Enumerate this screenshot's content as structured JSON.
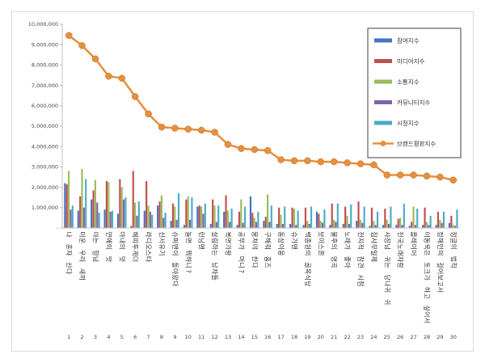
{
  "chart_data": {
    "type": "bar",
    "title": "",
    "xlabel": "",
    "ylabel": "",
    "ylim": [
      0,
      10000000
    ],
    "yticks": [
      "-",
      "1,000,000",
      "2,000,000",
      "3,000,000",
      "4,000,000",
      "5,000,000",
      "6,000,000",
      "7,000,000",
      "8,000,000",
      "9,000,000",
      "10,000,000"
    ],
    "grid": false,
    "legend_position": "top-right",
    "ranks": [
      "1",
      "2",
      "3",
      "4",
      "5",
      "6",
      "7",
      "8",
      "9",
      "10",
      "11",
      "12",
      "13",
      "14",
      "15",
      "16",
      "17",
      "18",
      "19",
      "20",
      "21",
      "22",
      "23",
      "24",
      "25",
      "26",
      "27",
      "28",
      "29",
      "30"
    ],
    "categories": [
      "나 혼자 산다",
      "미운 우리 새끼",
      "아는 형님",
      "연애의 맛",
      "아내의 맛",
      "해피투게더",
      "라디오스타",
      "신서유기",
      "슈퍼맨이 돌아왔다",
      "놀면 뭐하니?",
      "런닝맨",
      "살림하는 남자들",
      "복면가왕",
      "공부가 머니?",
      "뭉쳐야 찬다",
      "구해줘 홈즈",
      "동상이몽",
      "슈가맨",
      "백종원의 골목식당",
      "보이스퀸",
      "불후의 명곡",
      "노래가 좋아",
      "전지적 참견 시점",
      "집사부일체",
      "사장님 귀는 당나귀 귀",
      "전국노래자랑",
      "플레이어",
      "이동욱은 토크가 하고 싶어서",
      "정해인의 걸어보고서",
      "정글의 법칙"
    ],
    "series": [
      {
        "name": "참여지수",
        "color": "#4472c4",
        "values": [
          2200000,
          850000,
          1400000,
          900000,
          700000,
          100000,
          850000,
          1100000,
          350000,
          150000,
          1050000,
          200000,
          800000,
          150000,
          1550000,
          350000,
          200000,
          200000,
          150000,
          800000,
          150000,
          200000,
          350000,
          100000,
          150000,
          150000,
          100000,
          150000,
          150000,
          250000
        ]
      },
      {
        "name": "미디어지수",
        "color": "#c0504d",
        "values": [
          2150000,
          1550000,
          1850000,
          2300000,
          2400000,
          2800000,
          2300000,
          1300000,
          1200000,
          1400000,
          1100000,
          1400000,
          1600000,
          800000,
          750000,
          550000,
          1000000,
          1000000,
          1000000,
          700000,
          1200000,
          1050000,
          1300000,
          1000000,
          950000,
          450000,
          300000,
          1000000,
          800000,
          600000
        ]
      },
      {
        "name": "소통지수",
        "color": "#9bbb59",
        "values": [
          2800000,
          2900000,
          2350000,
          2250000,
          2000000,
          1250000,
          1100000,
          1600000,
          1050000,
          1550000,
          1050000,
          1100000,
          850000,
          1400000,
          500000,
          1650000,
          650000,
          950000,
          350000,
          350000,
          400000,
          600000,
          400000,
          350000,
          400000,
          500000,
          1050000,
          300000,
          400000,
          150000
        ]
      },
      {
        "name": "커뮤니티지수",
        "color": "#8064a2",
        "values": [
          900000,
          1000000,
          1250000,
          800000,
          1400000,
          600000,
          800000,
          500000,
          400000,
          400000,
          700000,
          300000,
          300000,
          250000,
          300000,
          300000,
          200000,
          150000,
          200000,
          250000,
          300000,
          200000,
          250000,
          150000,
          200000,
          150000,
          150000,
          150000,
          250000,
          100000
        ]
      },
      {
        "name": "시청지수",
        "color": "#4bacc6",
        "values": [
          1100000,
          2400000,
          750000,
          850000,
          1500000,
          1300000,
          650000,
          750000,
          1700000,
          1500000,
          1200000,
          1100000,
          950000,
          1050000,
          800000,
          1100000,
          1050000,
          850000,
          1050000,
          900000,
          1200000,
          1150000,
          1050000,
          800000,
          1050000,
          1200000,
          950000,
          600000,
          800000,
          900000
        ]
      }
    ],
    "line": {
      "name": "브랜드평판지수",
      "color": "#e78f3d",
      "values": [
        9450000,
        8950000,
        8300000,
        7450000,
        7350000,
        6450000,
        5600000,
        4950000,
        4900000,
        4850000,
        4800000,
        4700000,
        4100000,
        3900000,
        3850000,
        3800000,
        3350000,
        3300000,
        3300000,
        3250000,
        3250000,
        3200000,
        3150000,
        3100000,
        2600000,
        2600000,
        2600000,
        2550000,
        2500000,
        2350000
      ]
    }
  }
}
